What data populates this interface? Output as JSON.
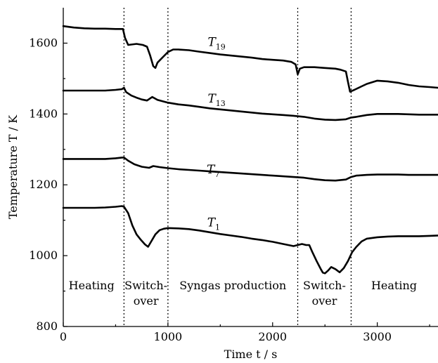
{
  "chart_data": {
    "type": "line",
    "title": "",
    "xlabel": "Time t / s",
    "ylabel": "Temperature T / K",
    "xlim": [
      0,
      3580
    ],
    "ylim": [
      800,
      1700
    ],
    "xticks": [
      0,
      1000,
      2000,
      3000
    ],
    "yticks": [
      800,
      1000,
      1200,
      1400,
      1600
    ],
    "grid": false,
    "legend": "none",
    "phase_boundaries": [
      580,
      1000,
      2240,
      2750
    ],
    "phases": [
      {
        "label": "Heating",
        "x": 270,
        "y": 905
      },
      {
        "label": "Switch-",
        "label2": "over",
        "x": 790,
        "y": 905
      },
      {
        "label": "Syngas production",
        "x": 1620,
        "y": 905
      },
      {
        "label": "Switch-",
        "label2": "over",
        "x": 2495,
        "y": 905
      },
      {
        "label": "Heating",
        "x": 3160,
        "y": 905
      }
    ],
    "series": [
      {
        "name": "T19",
        "label_main": "T",
        "label_sub": "19",
        "label_x": 1380,
        "label_y": 1592,
        "x": [
          0,
          100,
          200,
          300,
          400,
          500,
          570,
          590,
          620,
          700,
          760,
          800,
          830,
          860,
          880,
          900,
          950,
          1000,
          1050,
          1100,
          1200,
          1300,
          1400,
          1500,
          1600,
          1700,
          1800,
          1900,
          2000,
          2100,
          2180,
          2220,
          2240,
          2260,
          2300,
          2400,
          2500,
          2600,
          2650,
          2700,
          2720,
          2740,
          2780,
          2850,
          2900,
          3000,
          3100,
          3200,
          3300,
          3400,
          3500,
          3580
        ],
        "y": [
          1648,
          1644,
          1642,
          1641,
          1641,
          1640,
          1640,
          1615,
          1595,
          1598,
          1595,
          1590,
          1565,
          1535,
          1530,
          1545,
          1560,
          1575,
          1582,
          1582,
          1580,
          1576,
          1572,
          1568,
          1565,
          1562,
          1559,
          1555,
          1553,
          1551,
          1547,
          1540,
          1512,
          1528,
          1532,
          1532,
          1530,
          1528,
          1525,
          1520,
          1490,
          1463,
          1468,
          1478,
          1485,
          1494,
          1492,
          1488,
          1482,
          1478,
          1476,
          1474
        ]
      },
      {
        "name": "T13",
        "label_main": "T",
        "label_sub": "13",
        "label_x": 1380,
        "label_y": 1432,
        "x": [
          0,
          100,
          200,
          300,
          400,
          500,
          560,
          580,
          600,
          650,
          700,
          750,
          800,
          850,
          900,
          950,
          1000,
          1100,
          1200,
          1300,
          1400,
          1500,
          1600,
          1700,
          1800,
          1900,
          2000,
          2100,
          2200,
          2300,
          2400,
          2500,
          2600,
          2700,
          2750,
          2800,
          2900,
          3000,
          3100,
          3200,
          3300,
          3400,
          3500,
          3580
        ],
        "y": [
          1466,
          1466,
          1466,
          1466,
          1466,
          1468,
          1470,
          1474,
          1462,
          1452,
          1446,
          1441,
          1438,
          1448,
          1440,
          1436,
          1432,
          1427,
          1424,
          1420,
          1416,
          1413,
          1410,
          1407,
          1404,
          1401,
          1399,
          1397,
          1395,
          1392,
          1387,
          1384,
          1383,
          1385,
          1390,
          1392,
          1397,
          1400,
          1400,
          1400,
          1399,
          1398,
          1398,
          1398
        ]
      },
      {
        "name": "T7",
        "label_main": "T",
        "label_sub": "7",
        "label_x": 1370,
        "label_y": 1232,
        "x": [
          0,
          100,
          200,
          300,
          400,
          500,
          560,
          580,
          620,
          680,
          750,
          820,
          860,
          920,
          1000,
          1100,
          1200,
          1300,
          1400,
          1500,
          1600,
          1700,
          1800,
          1900,
          2000,
          2100,
          2200,
          2300,
          2400,
          2500,
          2600,
          2700,
          2750,
          2800,
          2900,
          3000,
          3100,
          3200,
          3300,
          3400,
          3500,
          3580
        ],
        "y": [
          1273,
          1273,
          1273,
          1273,
          1273,
          1275,
          1277,
          1277,
          1268,
          1258,
          1251,
          1248,
          1253,
          1250,
          1247,
          1244,
          1242,
          1240,
          1238,
          1236,
          1234,
          1232,
          1230,
          1228,
          1226,
          1224,
          1222,
          1220,
          1216,
          1213,
          1212,
          1215,
          1222,
          1226,
          1228,
          1229,
          1229,
          1229,
          1228,
          1228,
          1228,
          1228
        ]
      },
      {
        "name": "T1",
        "label_main": "T",
        "label_sub": "1",
        "label_x": 1375,
        "label_y": 1082,
        "x": [
          0,
          100,
          200,
          300,
          400,
          500,
          560,
          580,
          620,
          660,
          700,
          740,
          780,
          810,
          840,
          880,
          920,
          960,
          1000,
          1100,
          1200,
          1300,
          1400,
          1500,
          1600,
          1700,
          1800,
          1900,
          2000,
          2100,
          2200,
          2240,
          2280,
          2320,
          2350,
          2380,
          2420,
          2460,
          2480,
          2500,
          2530,
          2560,
          2600,
          2640,
          2680,
          2720,
          2760,
          2800,
          2850,
          2900,
          3000,
          3100,
          3200,
          3300,
          3400,
          3500,
          3580
        ],
        "y": [
          1135,
          1135,
          1135,
          1135,
          1136,
          1138,
          1140,
          1138,
          1120,
          1085,
          1060,
          1045,
          1032,
          1025,
          1040,
          1060,
          1072,
          1076,
          1078,
          1077,
          1075,
          1071,
          1066,
          1061,
          1057,
          1053,
          1048,
          1044,
          1039,
          1033,
          1027,
          1030,
          1033,
          1030,
          1030,
          1010,
          985,
          962,
          952,
          950,
          958,
          968,
          962,
          953,
          965,
          985,
          1010,
          1025,
          1040,
          1048,
          1052,
          1054,
          1055,
          1055,
          1055,
          1056,
          1057
        ]
      }
    ],
    "line_color": "#000000"
  }
}
